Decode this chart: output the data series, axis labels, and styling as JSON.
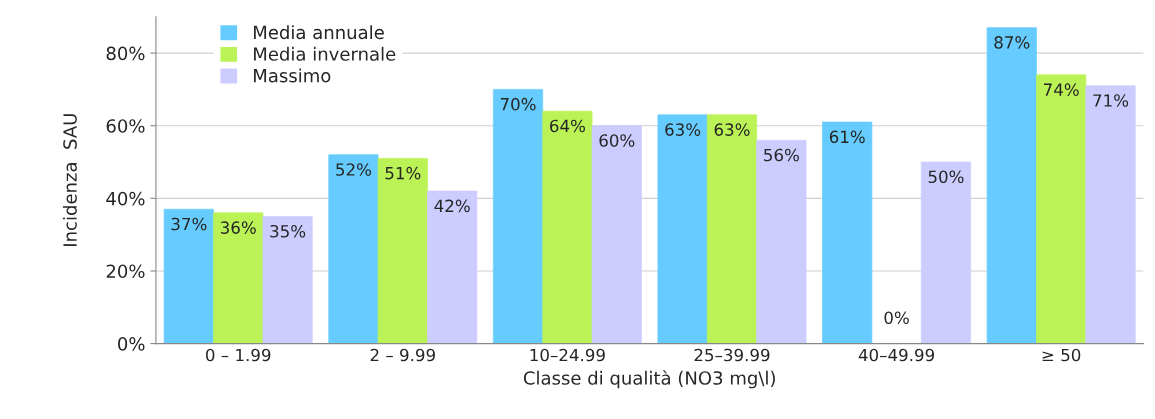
{
  "chart_data": {
    "type": "bar",
    "xlabel": "Classe di qualità (NO3 mg\\l)",
    "ylabel": "Incidenza  SAU",
    "categories": [
      "0 – 1.99",
      "2 – 9.99",
      "10–24.99",
      "25–39.99",
      "40–49.99",
      "≥ 50"
    ],
    "series": [
      {
        "name": "Media annuale",
        "color": "#66ccff",
        "values": [
          37,
          52,
          70,
          63,
          61,
          87
        ],
        "value_labels": [
          "37%",
          "52%",
          "70%",
          "63%",
          "61%",
          "87%"
        ]
      },
      {
        "name": "Media invernale",
        "color": "#bbf255",
        "values": [
          36,
          51,
          64,
          63,
          0,
          74
        ],
        "value_labels": [
          "36%",
          "51%",
          "64%",
          "63%",
          "0%",
          "74%"
        ]
      },
      {
        "name": "Massimo",
        "color": "#ccccff",
        "values": [
          35,
          42,
          60,
          56,
          50,
          71
        ],
        "value_labels": [
          "35%",
          "42%",
          "60%",
          "56%",
          "50%",
          "71%"
        ]
      }
    ],
    "ylim": [
      0,
      90
    ],
    "yticks": [
      {
        "value": 0,
        "label": "0%"
      },
      {
        "value": 20,
        "label": "20%"
      },
      {
        "value": 40,
        "label": "40%"
      },
      {
        "value": 60,
        "label": "60%"
      },
      {
        "value": 80,
        "label": "80%"
      }
    ],
    "grid": "y",
    "legend": "top left"
  }
}
